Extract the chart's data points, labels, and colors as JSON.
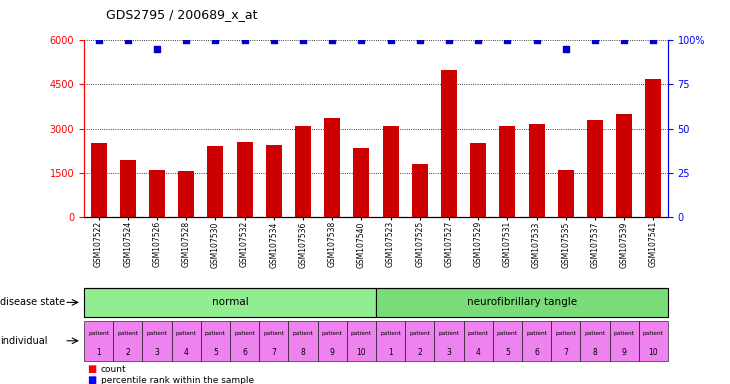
{
  "title": "GDS2795 / 200689_x_at",
  "samples": [
    "GSM107522",
    "GSM107524",
    "GSM107526",
    "GSM107528",
    "GSM107530",
    "GSM107532",
    "GSM107534",
    "GSM107536",
    "GSM107538",
    "GSM107540",
    "GSM107523",
    "GSM107525",
    "GSM107527",
    "GSM107529",
    "GSM107531",
    "GSM107533",
    "GSM107535",
    "GSM107537",
    "GSM107539",
    "GSM107541"
  ],
  "counts": [
    2500,
    1950,
    1600,
    1550,
    2400,
    2550,
    2450,
    3100,
    3350,
    2350,
    3100,
    1800,
    5000,
    2500,
    3100,
    3150,
    1600,
    3300,
    3500,
    4700
  ],
  "percentile_ranks": [
    100,
    100,
    95,
    100,
    100,
    100,
    100,
    100,
    100,
    100,
    100,
    100,
    100,
    100,
    100,
    100,
    95,
    100,
    100,
    100
  ],
  "bar_color": "#CC0000",
  "dot_color": "#0000CC",
  "ylim_left": [
    0,
    6000
  ],
  "ylim_right": [
    0,
    100
  ],
  "yticks_left": [
    0,
    1500,
    3000,
    4500,
    6000
  ],
  "yticks_right": [
    0,
    25,
    50,
    75,
    100
  ],
  "normal_color": "#98EE98",
  "tangle_color": "#A0EEA0",
  "individual_color_light": "#EE82EE",
  "individual_color_all": "#EE82EE",
  "individual_labels_top": [
    "patient",
    "patient",
    "patient",
    "patient",
    "patient",
    "patient",
    "patient",
    "patient",
    "patient",
    "patient",
    "patient",
    "patient",
    "patient",
    "patient",
    "patient",
    "patient",
    "patient",
    "patient",
    "patient",
    "patient"
  ],
  "individual_labels_bot": [
    "1",
    "2",
    "3",
    "4",
    "5",
    "6",
    "7",
    "8",
    "9",
    "10",
    "1",
    "2",
    "3",
    "4",
    "5",
    "6",
    "7",
    "8",
    "9",
    "10"
  ]
}
